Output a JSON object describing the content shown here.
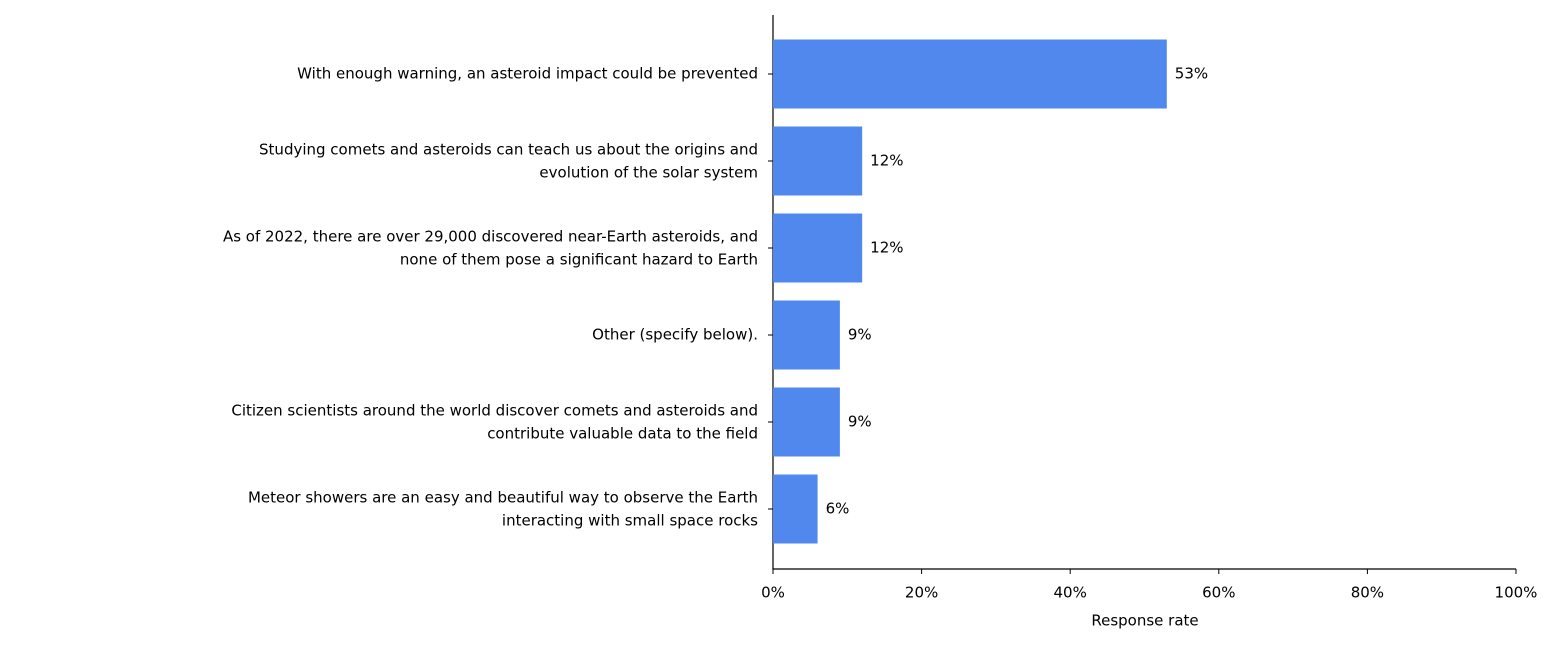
{
  "chart_data": {
    "type": "barh",
    "categories": [
      "With enough warning, an asteroid impact could be prevented",
      "Studying comets and asteroids can teach us about the origins and\nevolution of the solar system",
      "As of 2022, there are over 29,000 discovered near-Earth asteroids, and\nnone of them pose a significant hazard to Earth",
      "Other (specify below).",
      "Citizen scientists around the world discover comets and asteroids and\ncontribute valuable data to the field",
      "Meteor showers are an easy and beautiful way to observe the Earth\ninteracting with small space rocks"
    ],
    "values": [
      53,
      12,
      12,
      9,
      9,
      6
    ],
    "value_labels": [
      "53%",
      "12%",
      "12%",
      "9%",
      "9%",
      "6%"
    ],
    "color": "#5088ee",
    "xlim": [
      0,
      100
    ],
    "xticks": [
      {
        "value": 0,
        "label": "0%"
      },
      {
        "value": 20,
        "label": "20%"
      },
      {
        "value": 40,
        "label": "40%"
      },
      {
        "value": 60,
        "label": "60%"
      },
      {
        "value": 80,
        "label": "80%"
      },
      {
        "value": 100,
        "label": "100%"
      }
    ],
    "xlabel": "Response rate"
  }
}
